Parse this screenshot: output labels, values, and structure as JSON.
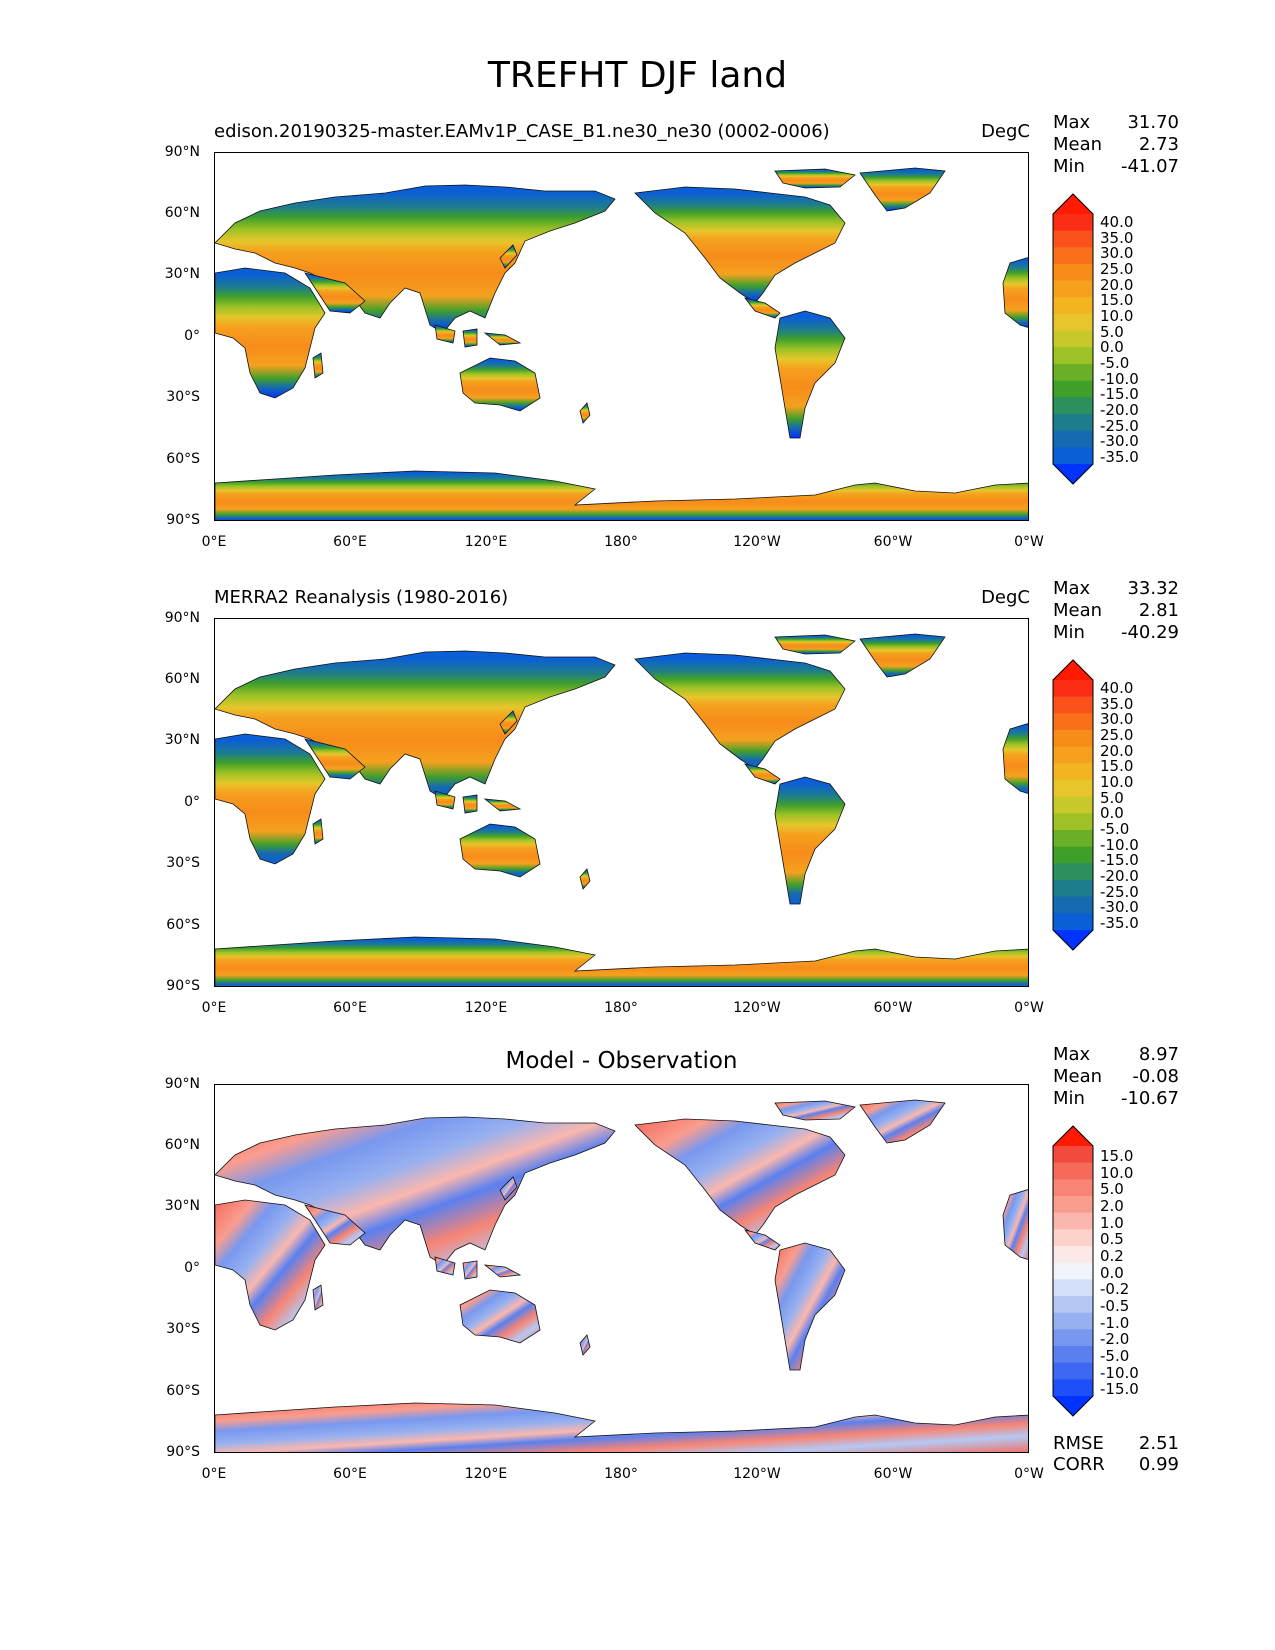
{
  "title": "TREFHT DJF land",
  "lat_ticks": [
    "90°N",
    "60°N",
    "30°N",
    "0°",
    "30°S",
    "60°S",
    "90°S"
  ],
  "lon_ticks": [
    "0°E",
    "60°E",
    "120°E",
    "180°",
    "120°W",
    "60°W",
    "0°W"
  ],
  "colors": {
    "abs_scale": [
      "#0033ff",
      "#0a5fd6",
      "#166ab0",
      "#1e7d8c",
      "#2b8f5e",
      "#3f9f2b",
      "#6aaf25",
      "#9cc225",
      "#c8c82a",
      "#e6c62b",
      "#f3b422",
      "#f5a11e",
      "#f78c1b",
      "#f8701a",
      "#fa521a",
      "#fb2d14",
      "#ff1a00"
    ],
    "diff_scale": [
      "#0033ff",
      "#1f4ff7",
      "#3e67f2",
      "#5a80f0",
      "#7898ef",
      "#97b0f0",
      "#b5c8f4",
      "#d4e0f9",
      "#f1f4fb",
      "#fbe9e7",
      "#fcd2cb",
      "#fbb7ad",
      "#f99d8f",
      "#f78474",
      "#f56a5a",
      "#f24a3c",
      "#ff1a00"
    ]
  },
  "panels": [
    {
      "title": "edison.20190325-master.EAMv1P_CASE_B1.ne30_ne30 (0002-0006)",
      "units": "DegC",
      "stats": [
        {
          "label": "Max",
          "value": "31.70"
        },
        {
          "label": "Mean",
          "value": "2.73"
        },
        {
          "label": "Min",
          "value": "-41.07"
        }
      ],
      "colorbar_levels": [
        "40.0",
        "35.0",
        "30.0",
        "25.0",
        "20.0",
        "15.0",
        "10.0",
        "5.0",
        "0.0",
        "-5.0",
        "-10.0",
        "-15.0",
        "-20.0",
        "-25.0",
        "-30.0",
        "-35.0"
      ]
    },
    {
      "title": "MERRA2 Reanalysis (1980-2016)",
      "units": "DegC",
      "stats": [
        {
          "label": "Max",
          "value": "33.32"
        },
        {
          "label": "Mean",
          "value": "2.81"
        },
        {
          "label": "Min",
          "value": "-40.29"
        }
      ],
      "colorbar_levels": [
        "40.0",
        "35.0",
        "30.0",
        "25.0",
        "20.0",
        "15.0",
        "10.0",
        "5.0",
        "0.0",
        "-5.0",
        "-10.0",
        "-15.0",
        "-20.0",
        "-25.0",
        "-30.0",
        "-35.0"
      ]
    },
    {
      "title": "Model - Observation",
      "units": "",
      "stats": [
        {
          "label": "Max",
          "value": "8.97"
        },
        {
          "label": "Mean",
          "value": "-0.08"
        },
        {
          "label": "Min",
          "value": "-10.67"
        }
      ],
      "colorbar_levels": [
        "15.0",
        "10.0",
        "5.0",
        "2.0",
        "1.0",
        "0.5",
        "0.2",
        "0.0",
        "-0.2",
        "-0.5",
        "-1.0",
        "-2.0",
        "-5.0",
        "-10.0",
        "-15.0"
      ],
      "extra_stats": [
        {
          "label": "RMSE",
          "value": "2.51"
        },
        {
          "label": "CORR",
          "value": "0.99"
        }
      ]
    }
  ]
}
